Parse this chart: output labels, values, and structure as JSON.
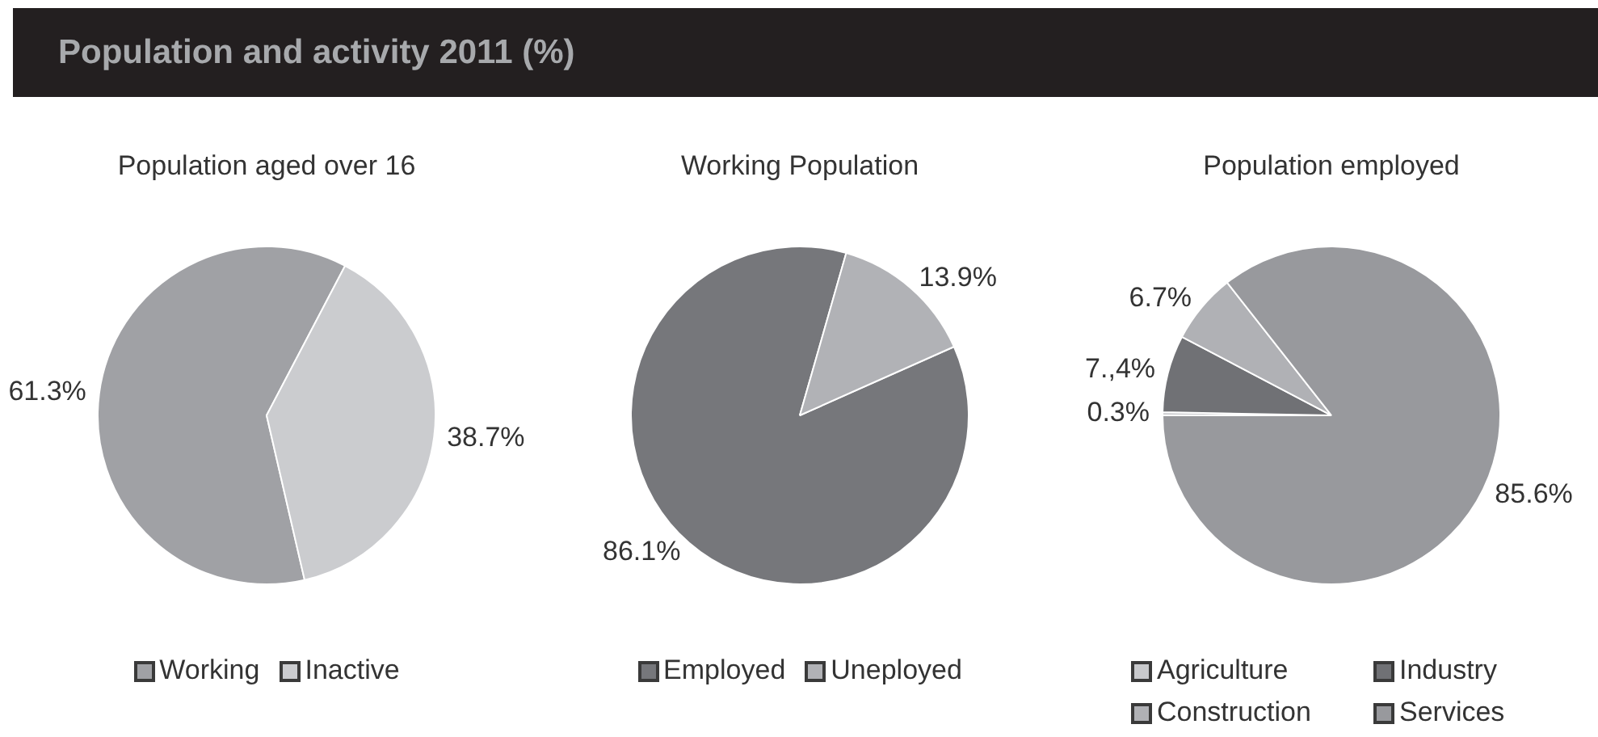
{
  "chart_data": [
    {
      "type": "pie",
      "title": "Population and activity 2011 (%)",
      "subtitle": "Population aged over 16",
      "categories": [
        "Working",
        "Inactive"
      ],
      "values": [
        61.3,
        38.7
      ],
      "colors": [
        "#a0a1a5",
        "#cbcccf"
      ],
      "value_labels": [
        "61.3%",
        "38.7%"
      ],
      "legend": "bottom"
    },
    {
      "type": "pie",
      "subtitle": "Working Population",
      "categories": [
        "Employed",
        "Uneployed"
      ],
      "values": [
        86.1,
        13.9
      ],
      "colors": [
        "#76777b",
        "#b1b2b6"
      ],
      "value_labels": [
        "86.1%",
        "13.9%"
      ],
      "legend": "bottom"
    },
    {
      "type": "pie",
      "subtitle": "Population employed",
      "categories": [
        "Agriculture",
        "Industry",
        "Construction",
        "Services"
      ],
      "values": [
        0.3,
        7.4,
        6.7,
        85.6
      ],
      "colors": [
        "#c8c9cc",
        "#707175",
        "#b0b1b5",
        "#98999d"
      ],
      "value_labels": [
        "0.3%",
        "7.,4%",
        "6.7%",
        "85.6%"
      ],
      "legend": "bottom"
    }
  ]
}
